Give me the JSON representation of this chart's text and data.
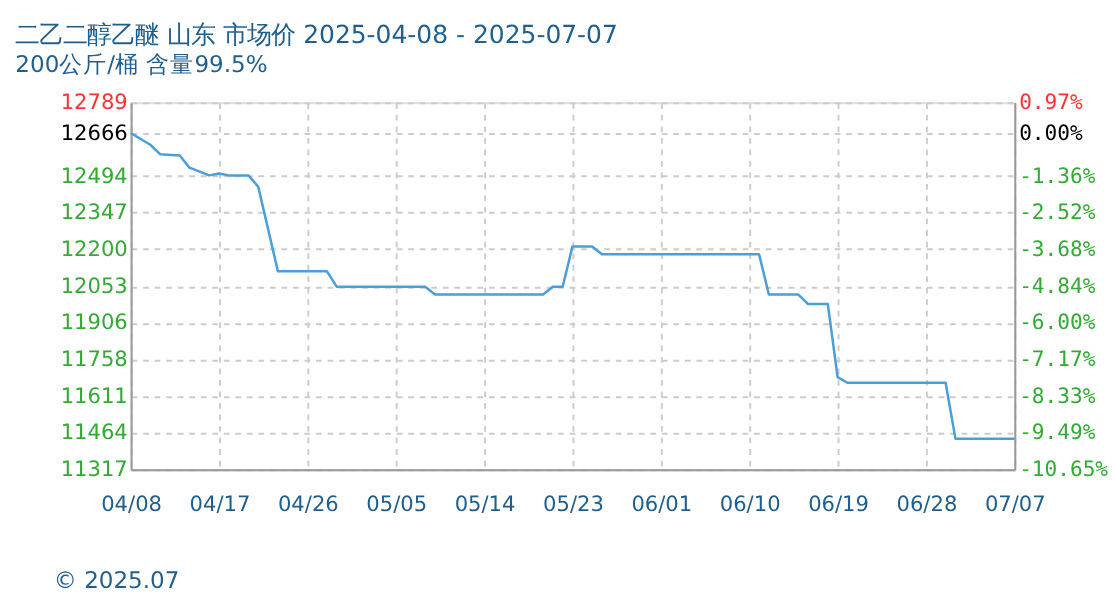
{
  "chart_data": {
    "type": "line",
    "title": "二乙二醇乙醚 山东 市场价 2025-04-08 - 2025-07-07",
    "subtitle": "200公斤/桶  含量99.5%",
    "x": [
      "2025-04-08",
      "2025-04-10",
      "2025-04-11",
      "2025-04-13",
      "2025-04-14",
      "2025-04-16",
      "2025-04-17",
      "2025-04-18",
      "2025-04-20",
      "2025-04-21",
      "2025-04-23",
      "2025-04-28",
      "2025-04-29",
      "2025-05-08",
      "2025-05-09",
      "2025-05-20",
      "2025-05-21",
      "2025-05-22",
      "2025-05-23",
      "2025-05-25",
      "2025-05-26",
      "2025-06-11",
      "2025-06-12",
      "2025-06-15",
      "2025-06-16",
      "2025-06-18",
      "2025-06-19",
      "2025-06-20",
      "2025-06-30",
      "2025-07-01",
      "2025-07-07"
    ],
    "series": [
      {
        "color": "#4a9edb",
        "values": [
          12666,
          12619,
          12581,
          12576,
          12527,
          12496,
          12504,
          12496,
          12496,
          12450,
          12111,
          12111,
          12049,
          12049,
          12018,
          12018,
          12049,
          12049,
          12211,
          12211,
          12180,
          12180,
          12018,
          12018,
          11980,
          11980,
          11687,
          11664,
          11664,
          11440,
          11440
        ]
      }
    ],
    "xlim": [
      "2025-04-08",
      "2025-07-07"
    ],
    "xticks": [
      {
        "value": "2025-04-08",
        "label": "04/08"
      },
      {
        "value": "2025-04-17",
        "label": "04/17"
      },
      {
        "value": "2025-04-26",
        "label": "04/26"
      },
      {
        "value": "2025-05-05",
        "label": "05/05"
      },
      {
        "value": "2025-05-14",
        "label": "05/14"
      },
      {
        "value": "2025-05-23",
        "label": "05/23"
      },
      {
        "value": "2025-06-01",
        "label": "06/01"
      },
      {
        "value": "2025-06-10",
        "label": "06/10"
      },
      {
        "value": "2025-06-19",
        "label": "06/19"
      },
      {
        "value": "2025-06-28",
        "label": "06/28"
      },
      {
        "value": "2025-07-07",
        "label": "07/07"
      }
    ],
    "ylim": [
      11317,
      12789
    ],
    "yticks": [
      11317,
      11464,
      11611,
      11758,
      11906,
      12053,
      12200,
      12347,
      12494,
      12666,
      12789
    ],
    "y2lim": [
      -10.65,
      0.97
    ],
    "y2ticks": [
      {
        "value": -10.65,
        "label": "-10.65%"
      },
      {
        "value": -9.49,
        "label": "-9.49%"
      },
      {
        "value": -8.33,
        "label": "-8.33%"
      },
      {
        "value": -7.17,
        "label": "-7.17%"
      },
      {
        "value": -6.0,
        "label": "-6.00%"
      },
      {
        "value": -4.84,
        "label": "-4.84%"
      },
      {
        "value": -3.68,
        "label": "-3.68%"
      },
      {
        "value": -2.52,
        "label": "-2.52%"
      },
      {
        "value": -1.36,
        "label": "-1.36%"
      },
      {
        "value": 0,
        "label": "0.00%"
      },
      {
        "value": 0.97,
        "label": "0.97%"
      }
    ],
    "grid": true,
    "marker": "none",
    "line_style": "solid",
    "annotations": [
      "© 2025.07"
    ]
  }
}
